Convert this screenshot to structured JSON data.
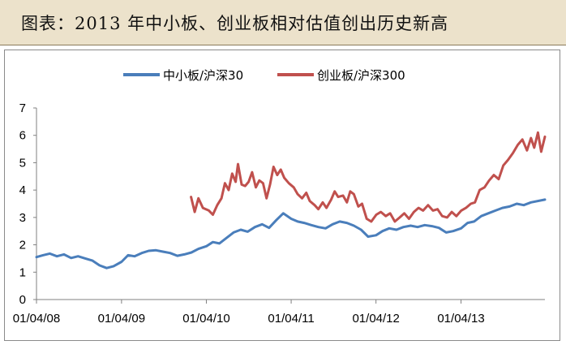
{
  "header": {
    "title": "图表：2013 年中小板、创业板相对估值创出历史新高",
    "bar_color": "#ece2cb"
  },
  "chart_data": {
    "type": "line",
    "title": "",
    "xlabel": "",
    "ylabel": "",
    "ylim": [
      0,
      7
    ],
    "yticks": [
      0,
      1,
      2,
      3,
      4,
      5,
      6,
      7
    ],
    "xlim": [
      "2008-01-04",
      "2013-12-31"
    ],
    "xticks": [
      "01/04/08",
      "01/04/09",
      "01/04/10",
      "01/04/11",
      "01/04/12",
      "01/04/13"
    ],
    "grid": false,
    "legend_position": "top",
    "series": [
      {
        "name": "中小板/沪深30",
        "color": "#4a7ebb",
        "points": [
          [
            "2008-01-04",
            1.55
          ],
          [
            "2008-02-01",
            1.62
          ],
          [
            "2008-03-01",
            1.68
          ],
          [
            "2008-04-01",
            1.58
          ],
          [
            "2008-05-01",
            1.65
          ],
          [
            "2008-06-01",
            1.52
          ],
          [
            "2008-07-01",
            1.58
          ],
          [
            "2008-08-01",
            1.5
          ],
          [
            "2008-09-01",
            1.42
          ],
          [
            "2008-10-01",
            1.25
          ],
          [
            "2008-11-01",
            1.15
          ],
          [
            "2008-12-01",
            1.22
          ],
          [
            "2009-01-04",
            1.38
          ],
          [
            "2009-02-01",
            1.62
          ],
          [
            "2009-03-01",
            1.58
          ],
          [
            "2009-04-01",
            1.7
          ],
          [
            "2009-05-01",
            1.78
          ],
          [
            "2009-06-01",
            1.8
          ],
          [
            "2009-07-01",
            1.75
          ],
          [
            "2009-08-01",
            1.7
          ],
          [
            "2009-09-01",
            1.6
          ],
          [
            "2009-10-01",
            1.65
          ],
          [
            "2009-11-01",
            1.72
          ],
          [
            "2009-12-01",
            1.85
          ],
          [
            "2010-01-04",
            1.95
          ],
          [
            "2010-02-01",
            2.1
          ],
          [
            "2010-03-01",
            2.05
          ],
          [
            "2010-04-01",
            2.25
          ],
          [
            "2010-05-01",
            2.45
          ],
          [
            "2010-06-01",
            2.55
          ],
          [
            "2010-07-01",
            2.48
          ],
          [
            "2010-08-01",
            2.65
          ],
          [
            "2010-09-01",
            2.75
          ],
          [
            "2010-10-01",
            2.62
          ],
          [
            "2010-11-01",
            2.9
          ],
          [
            "2010-12-01",
            3.15
          ],
          [
            "2011-01-04",
            2.95
          ],
          [
            "2011-02-01",
            2.85
          ],
          [
            "2011-03-01",
            2.8
          ],
          [
            "2011-04-01",
            2.72
          ],
          [
            "2011-05-01",
            2.65
          ],
          [
            "2011-06-01",
            2.6
          ],
          [
            "2011-07-01",
            2.75
          ],
          [
            "2011-08-01",
            2.85
          ],
          [
            "2011-09-01",
            2.8
          ],
          [
            "2011-10-01",
            2.7
          ],
          [
            "2011-11-01",
            2.55
          ],
          [
            "2011-12-01",
            2.3
          ],
          [
            "2012-01-04",
            2.35
          ],
          [
            "2012-02-01",
            2.5
          ],
          [
            "2012-03-01",
            2.6
          ],
          [
            "2012-04-01",
            2.55
          ],
          [
            "2012-05-01",
            2.65
          ],
          [
            "2012-06-01",
            2.7
          ],
          [
            "2012-07-01",
            2.65
          ],
          [
            "2012-08-01",
            2.72
          ],
          [
            "2012-09-01",
            2.68
          ],
          [
            "2012-10-01",
            2.62
          ],
          [
            "2012-11-01",
            2.45
          ],
          [
            "2012-12-01",
            2.5
          ],
          [
            "2013-01-04",
            2.6
          ],
          [
            "2013-02-01",
            2.8
          ],
          [
            "2013-03-01",
            2.85
          ],
          [
            "2013-04-01",
            3.05
          ],
          [
            "2013-05-01",
            3.15
          ],
          [
            "2013-06-01",
            3.25
          ],
          [
            "2013-07-01",
            3.35
          ],
          [
            "2013-08-01",
            3.4
          ],
          [
            "2013-09-01",
            3.5
          ],
          [
            "2013-10-01",
            3.45
          ],
          [
            "2013-11-01",
            3.55
          ],
          [
            "2013-12-31",
            3.65
          ]
        ]
      },
      {
        "name": "创业板/沪深300",
        "color": "#c0504d",
        "points": [
          [
            "2009-10-30",
            3.75
          ],
          [
            "2009-11-15",
            3.2
          ],
          [
            "2009-12-01",
            3.7
          ],
          [
            "2009-12-20",
            3.35
          ],
          [
            "2010-01-15",
            3.25
          ],
          [
            "2010-02-01",
            3.1
          ],
          [
            "2010-02-20",
            3.45
          ],
          [
            "2010-03-10",
            3.7
          ],
          [
            "2010-03-25",
            4.25
          ],
          [
            "2010-04-10",
            4.0
          ],
          [
            "2010-04-25",
            4.6
          ],
          [
            "2010-05-10",
            4.3
          ],
          [
            "2010-05-20",
            4.95
          ],
          [
            "2010-06-05",
            4.2
          ],
          [
            "2010-06-20",
            4.15
          ],
          [
            "2010-07-05",
            4.3
          ],
          [
            "2010-07-20",
            4.65
          ],
          [
            "2010-08-05",
            4.1
          ],
          [
            "2010-08-20",
            4.35
          ],
          [
            "2010-09-05",
            4.25
          ],
          [
            "2010-09-20",
            3.7
          ],
          [
            "2010-10-05",
            4.2
          ],
          [
            "2010-10-20",
            4.85
          ],
          [
            "2010-11-05",
            4.55
          ],
          [
            "2010-11-20",
            4.75
          ],
          [
            "2010-12-05",
            4.45
          ],
          [
            "2010-12-25",
            4.25
          ],
          [
            "2011-01-15",
            4.1
          ],
          [
            "2011-02-01",
            3.85
          ],
          [
            "2011-02-20",
            3.7
          ],
          [
            "2011-03-10",
            3.9
          ],
          [
            "2011-03-25",
            3.6
          ],
          [
            "2011-04-15",
            3.45
          ],
          [
            "2011-05-01",
            3.3
          ],
          [
            "2011-05-20",
            3.55
          ],
          [
            "2011-06-05",
            3.35
          ],
          [
            "2011-06-25",
            3.65
          ],
          [
            "2011-07-10",
            3.95
          ],
          [
            "2011-07-25",
            3.75
          ],
          [
            "2011-08-15",
            3.8
          ],
          [
            "2011-09-01",
            3.55
          ],
          [
            "2011-09-15",
            3.95
          ],
          [
            "2011-10-01",
            3.85
          ],
          [
            "2011-10-20",
            3.4
          ],
          [
            "2011-11-05",
            3.5
          ],
          [
            "2011-11-25",
            2.95
          ],
          [
            "2011-12-15",
            2.85
          ],
          [
            "2012-01-05",
            3.1
          ],
          [
            "2012-01-25",
            3.2
          ],
          [
            "2012-02-15",
            3.05
          ],
          [
            "2012-03-05",
            3.15
          ],
          [
            "2012-03-25",
            2.85
          ],
          [
            "2012-04-15",
            3.0
          ],
          [
            "2012-05-05",
            3.15
          ],
          [
            "2012-05-25",
            2.95
          ],
          [
            "2012-06-15",
            3.2
          ],
          [
            "2012-07-05",
            3.35
          ],
          [
            "2012-07-25",
            3.25
          ],
          [
            "2012-08-15",
            3.45
          ],
          [
            "2012-09-05",
            3.25
          ],
          [
            "2012-09-25",
            3.3
          ],
          [
            "2012-10-15",
            3.05
          ],
          [
            "2012-11-05",
            3.0
          ],
          [
            "2012-11-25",
            3.2
          ],
          [
            "2012-12-15",
            3.05
          ],
          [
            "2013-01-05",
            3.25
          ],
          [
            "2013-01-25",
            3.35
          ],
          [
            "2013-02-15",
            3.5
          ],
          [
            "2013-03-05",
            3.55
          ],
          [
            "2013-03-25",
            4.0
          ],
          [
            "2013-04-15",
            4.1
          ],
          [
            "2013-05-05",
            4.35
          ],
          [
            "2013-05-25",
            4.55
          ],
          [
            "2013-06-15",
            4.4
          ],
          [
            "2013-07-05",
            4.9
          ],
          [
            "2013-07-25",
            5.1
          ],
          [
            "2013-08-15",
            5.35
          ],
          [
            "2013-09-05",
            5.65
          ],
          [
            "2013-09-25",
            5.85
          ],
          [
            "2013-10-15",
            5.45
          ],
          [
            "2013-11-01",
            5.9
          ],
          [
            "2013-11-15",
            5.55
          ],
          [
            "2013-12-01",
            6.1
          ],
          [
            "2013-12-15",
            5.4
          ],
          [
            "2013-12-31",
            5.95
          ]
        ]
      }
    ]
  }
}
